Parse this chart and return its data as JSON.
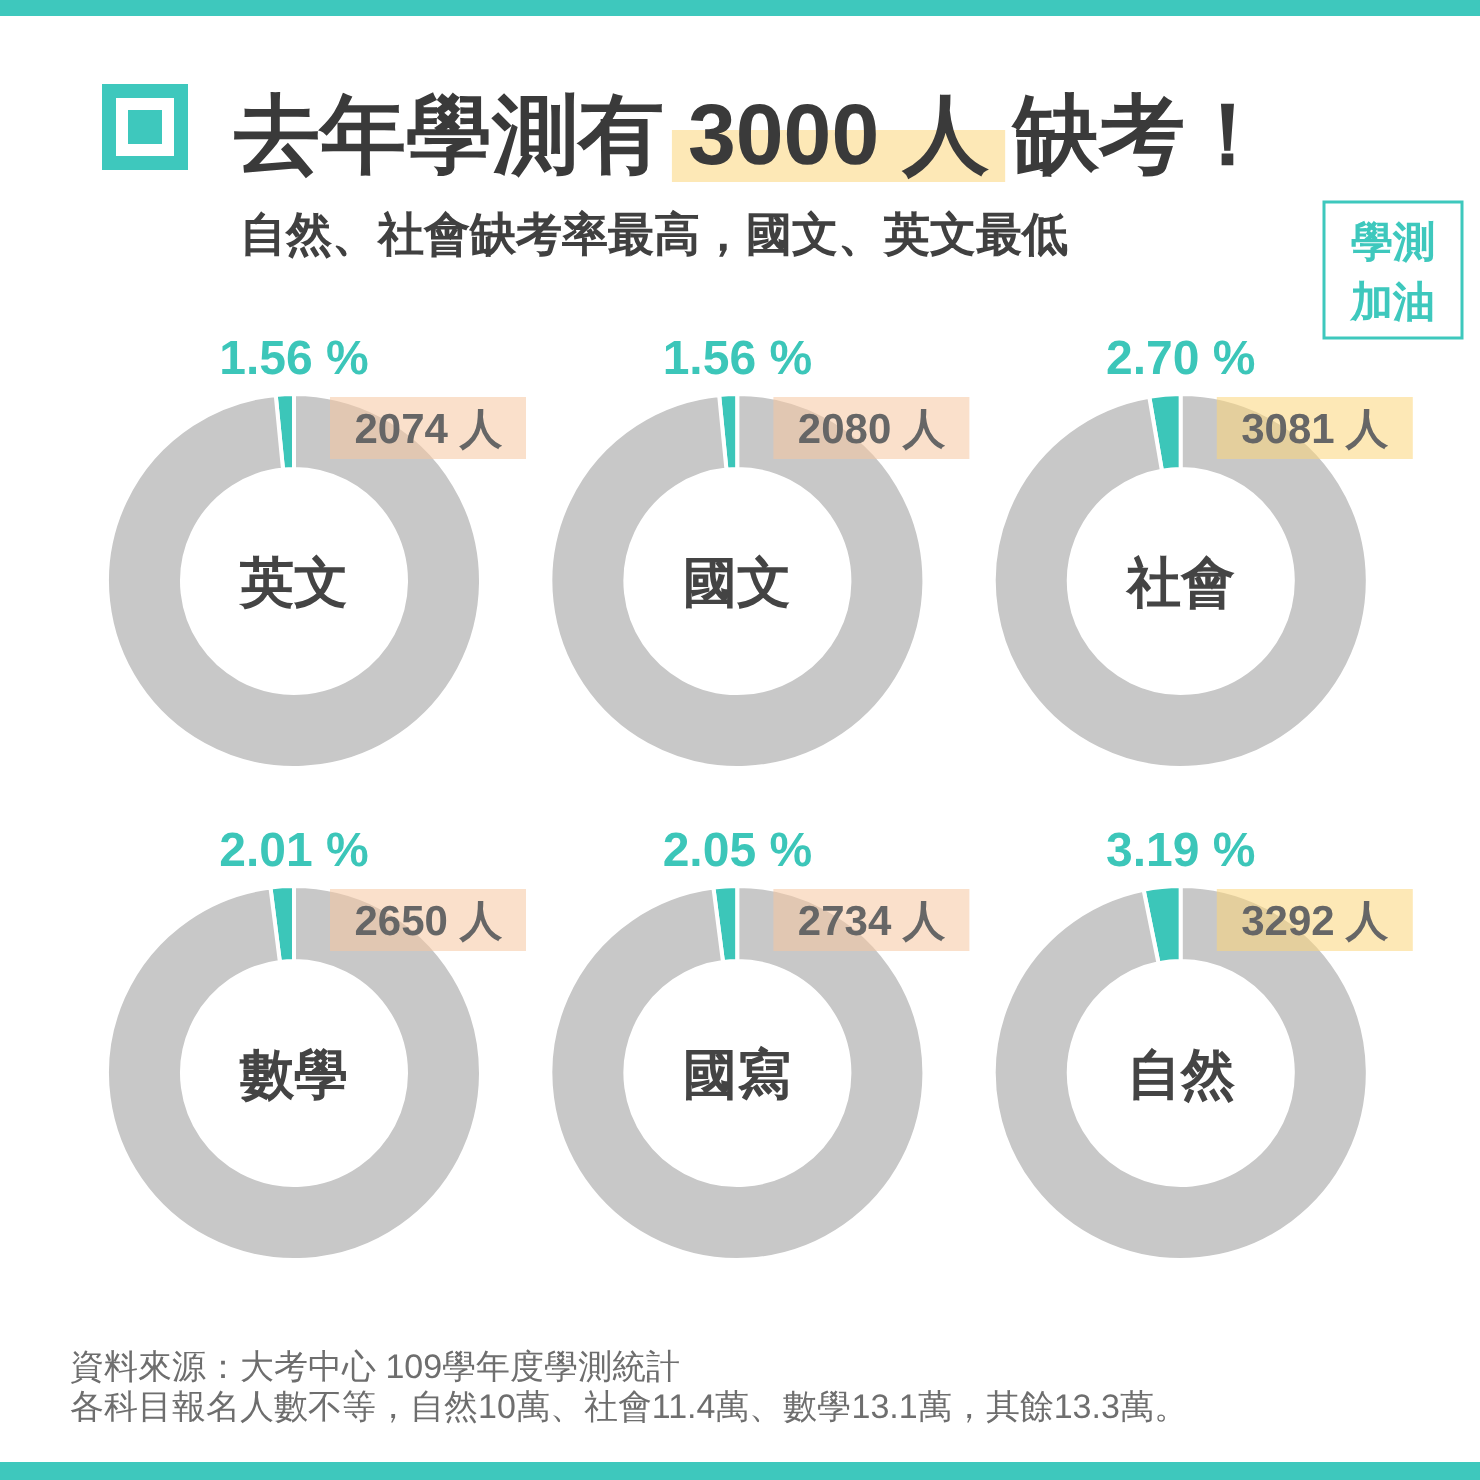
{
  "chart_data": [
    {
      "type": "other",
      "title": "去年學測有 3000 人 缺考！",
      "subtitle": "自然、社會缺考率最高，國文、英文最低",
      "annotations": [
        "學測加油",
        "資料來源：大考中心 109學年度學測統計",
        "各科目報名人數不等，自然10萬、社會11.4萬、數學13.1萬，其餘13.3萬。"
      ]
    },
    {
      "type": "donut",
      "title": "英文",
      "categories": [
        null,
        null
      ],
      "values": [
        1.56,
        98.44
      ],
      "colors": [
        "#3cc6b9",
        "#c8c8c8"
      ],
      "value_labels": [
        "1.56 %",
        null
      ],
      "annotations": [
        "2074 人"
      ]
    },
    {
      "type": "donut",
      "title": "國文",
      "categories": [
        null,
        null
      ],
      "values": [
        1.56,
        98.44
      ],
      "colors": [
        "#3cc6b9",
        "#c8c8c8"
      ],
      "value_labels": [
        "1.56 %",
        null
      ],
      "annotations": [
        "2080 人"
      ]
    },
    {
      "type": "donut",
      "title": "社會",
      "categories": [
        null,
        null
      ],
      "values": [
        2.7,
        97.3
      ],
      "colors": [
        "#3cc6b9",
        "#c8c8c8"
      ],
      "value_labels": [
        "2.70 %",
        null
      ],
      "annotations": [
        "3081 人"
      ]
    },
    {
      "type": "donut",
      "title": "數學",
      "categories": [
        null,
        null
      ],
      "values": [
        2.01,
        97.99
      ],
      "colors": [
        "#3cc6b9",
        "#c8c8c8"
      ],
      "value_labels": [
        "2.01 %",
        null
      ],
      "annotations": [
        "2650 人"
      ]
    },
    {
      "type": "donut",
      "title": "國寫",
      "categories": [
        null,
        null
      ],
      "values": [
        2.05,
        97.95
      ],
      "colors": [
        "#3cc6b9",
        "#c8c8c8"
      ],
      "value_labels": [
        "2.05 %",
        null
      ],
      "annotations": [
        "2734 人"
      ]
    },
    {
      "type": "donut",
      "title": "自然",
      "categories": [
        null,
        null
      ],
      "values": [
        3.19,
        96.81
      ],
      "colors": [
        "#3cc6b9",
        "#c8c8c8"
      ],
      "value_labels": [
        "3.19 %",
        null
      ],
      "annotations": [
        "3292 人"
      ]
    }
  ]
}
